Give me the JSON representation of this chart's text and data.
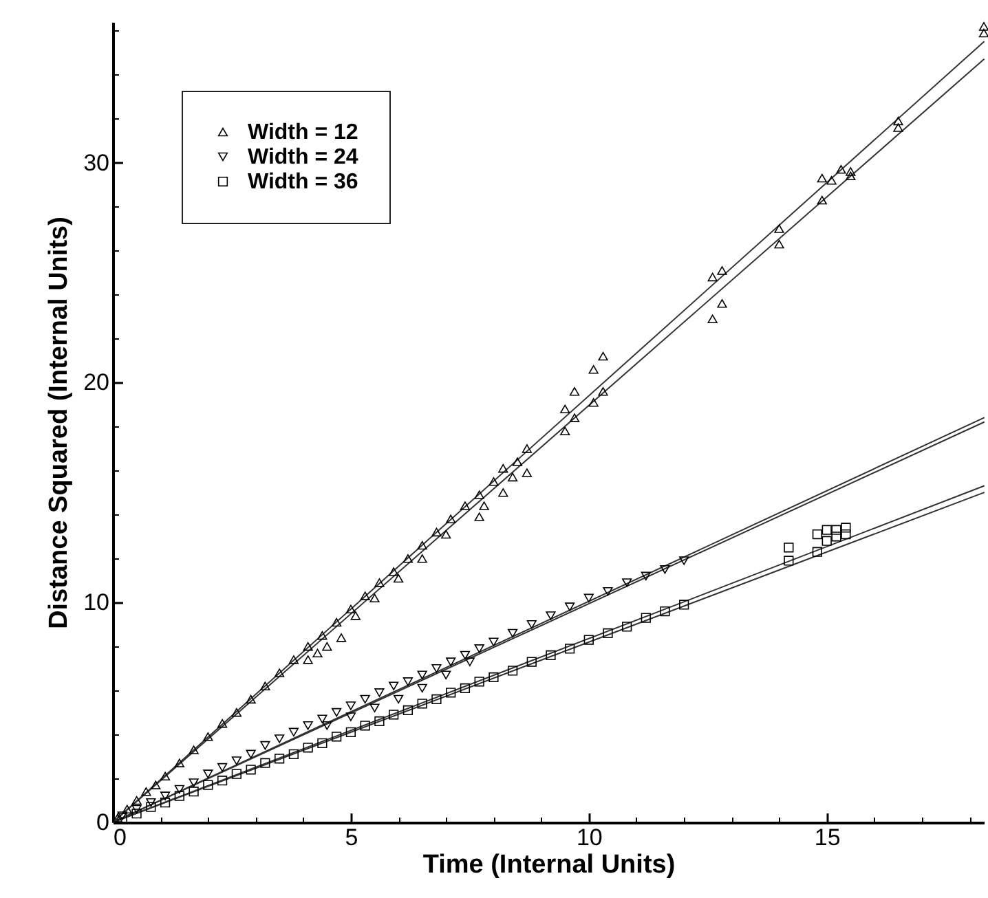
{
  "chart_data": {
    "type": "scatter",
    "xlabel": "Time (Internal Units)",
    "ylabel": "Distance Squared (Internal Units)",
    "xlim": [
      0,
      18.3
    ],
    "ylim": [
      0,
      36.4
    ],
    "xticks": [
      0,
      {
        "value": 1,
        "label": null
      },
      {
        "value": 2,
        "label": null
      },
      {
        "value": 3,
        "label": null
      },
      {
        "value": 4,
        "label": null
      },
      5,
      {
        "value": 6,
        "label": null
      },
      {
        "value": 7,
        "label": null
      },
      {
        "value": 8,
        "label": null
      },
      {
        "value": 9,
        "label": null
      },
      10,
      {
        "value": 11,
        "label": null
      },
      {
        "value": 12,
        "label": null
      },
      {
        "value": 13,
        "label": null
      },
      {
        "value": 14,
        "label": null
      },
      15,
      {
        "value": 16,
        "label": null
      },
      {
        "value": 17,
        "label": null
      },
      {
        "value": 18,
        "label": null
      }
    ],
    "yticks": [
      0,
      {
        "value": 2,
        "label": null
      },
      {
        "value": 4,
        "label": null
      },
      {
        "value": 6,
        "label": null
      },
      {
        "value": 8,
        "label": null
      },
      10,
      {
        "value": 12,
        "label": null
      },
      {
        "value": 14,
        "label": null
      },
      {
        "value": 16,
        "label": null
      },
      {
        "value": 18,
        "label": null
      },
      20,
      {
        "value": 22,
        "label": null
      },
      {
        "value": 24,
        "label": null
      },
      {
        "value": 26,
        "label": null
      },
      {
        "value": 28,
        "label": null
      },
      30,
      {
        "value": 32,
        "label": null
      },
      {
        "value": 34,
        "label": null
      },
      {
        "value": 36,
        "label": null
      }
    ],
    "grid": false,
    "legend": "top left",
    "series": [
      {
        "name": "Width = 12",
        "type": "scatter",
        "marker": "triangle",
        "color": "#000000",
        "x": [
          0.1,
          0.3,
          0.5,
          0.7,
          0.9,
          1.1,
          1.4,
          1.7,
          2.0,
          2.3,
          2.6,
          2.9,
          3.2,
          3.5,
          3.8,
          4.1,
          4.4,
          4.7,
          5.0,
          5.3,
          5.6,
          5.9,
          6.2,
          6.5,
          6.8,
          7.1,
          7.4,
          7.7,
          8.0,
          4.1,
          4.3,
          4.5,
          4.8,
          5.1,
          5.5,
          6.0,
          6.5,
          7.0,
          7.7,
          7.8,
          8.2,
          8.4,
          8.2,
          8.5,
          8.7,
          8.7,
          9.5,
          9.5,
          9.7,
          10.1,
          10.3,
          10.1,
          10.3,
          9.7,
          12.6,
          12.8,
          12.6,
          12.8,
          14.0,
          14.0,
          14.9,
          14.9,
          15.1,
          15.3,
          15.5,
          15.5,
          16.5,
          16.5,
          18.3,
          18.3
        ],
        "values": [
          0.2,
          0.6,
          1.0,
          1.4,
          1.7,
          2.1,
          2.7,
          3.3,
          3.9,
          4.5,
          5.0,
          5.6,
          6.2,
          6.8,
          7.4,
          8.0,
          8.5,
          9.1,
          9.7,
          10.3,
          10.9,
          11.4,
          12.0,
          12.6,
          13.2,
          13.8,
          14.4,
          14.9,
          15.5,
          7.4,
          7.7,
          8.0,
          8.4,
          9.4,
          10.2,
          11.1,
          12.0,
          13.1,
          13.9,
          14.4,
          15.0,
          15.7,
          16.1,
          16.4,
          15.9,
          17.0,
          17.8,
          18.8,
          19.6,
          20.6,
          21.2,
          19.1,
          19.6,
          18.4,
          22.9,
          23.6,
          24.8,
          25.1,
          26.3,
          27.0,
          28.3,
          29.3,
          29.2,
          29.7,
          29.6,
          29.4,
          31.9,
          31.6,
          36.2,
          35.9
        ]
      },
      {
        "name": "Width = 24",
        "type": "scatter",
        "marker": "triangle-down",
        "color": "#000000",
        "x": [
          0.2,
          0.5,
          0.8,
          1.1,
          1.4,
          1.7,
          2.0,
          2.3,
          2.6,
          2.9,
          3.2,
          3.5,
          3.8,
          4.1,
          4.4,
          4.7,
          5.0,
          5.3,
          5.6,
          5.9,
          6.2,
          6.5,
          6.8,
          7.1,
          7.4,
          7.7,
          8.0,
          8.4,
          8.8,
          9.2,
          9.6,
          10.0,
          10.4,
          10.8,
          11.2,
          11.6,
          12.0,
          4.5,
          5.0,
          5.5,
          6.0,
          6.5,
          7.0,
          7.5
        ],
        "values": [
          0.3,
          0.6,
          0.9,
          1.2,
          1.5,
          1.8,
          2.2,
          2.5,
          2.8,
          3.1,
          3.5,
          3.8,
          4.1,
          4.4,
          4.7,
          5.0,
          5.3,
          5.6,
          5.9,
          6.2,
          6.4,
          6.7,
          7.0,
          7.3,
          7.6,
          7.9,
          8.2,
          8.6,
          9.0,
          9.4,
          9.8,
          10.2,
          10.5,
          10.9,
          11.2,
          11.5,
          11.9,
          4.4,
          4.8,
          5.2,
          5.6,
          6.1,
          6.7,
          7.3
        ]
      },
      {
        "name": "Width = 36",
        "type": "scatter",
        "marker": "square",
        "color": "#000000",
        "x": [
          0.2,
          0.5,
          0.8,
          1.1,
          1.4,
          1.7,
          2.0,
          2.3,
          2.6,
          2.9,
          3.2,
          3.5,
          3.8,
          4.1,
          4.4,
          4.7,
          5.0,
          5.3,
          5.6,
          5.9,
          6.2,
          6.5,
          6.8,
          7.1,
          7.4,
          7.7,
          8.0,
          8.4,
          8.8,
          9.2,
          9.6,
          10.0,
          10.4,
          10.8,
          11.2,
          11.6,
          12.0,
          14.2,
          14.2,
          14.8,
          14.8,
          15.0,
          15.2,
          15.4,
          15.0,
          15.2,
          15.4
        ],
        "values": [
          0.2,
          0.4,
          0.7,
          0.9,
          1.2,
          1.4,
          1.7,
          1.9,
          2.2,
          2.4,
          2.7,
          2.9,
          3.1,
          3.4,
          3.6,
          3.9,
          4.1,
          4.4,
          4.6,
          4.9,
          5.1,
          5.4,
          5.6,
          5.9,
          6.1,
          6.4,
          6.6,
          6.9,
          7.3,
          7.6,
          7.9,
          8.3,
          8.6,
          8.9,
          9.3,
          9.6,
          9.9,
          12.5,
          11.9,
          13.1,
          12.3,
          13.3,
          13.3,
          13.4,
          12.8,
          13.0,
          13.1
        ]
      },
      {
        "type": "line",
        "marker": "none",
        "color": "#333333",
        "x": [
          0,
          18.3
        ],
        "values": [
          0,
          35.5
        ]
      },
      {
        "type": "line",
        "marker": "none",
        "color": "#333333",
        "x": [
          0,
          18.3
        ],
        "values": [
          0,
          34.7
        ]
      },
      {
        "type": "line",
        "marker": "none",
        "color": "#333333",
        "x": [
          0,
          18.3
        ],
        "values": [
          0,
          18.4
        ]
      },
      {
        "type": "line",
        "marker": "none",
        "color": "#333333",
        "x": [
          0,
          18.3
        ],
        "values": [
          0,
          18.2
        ]
      },
      {
        "type": "line",
        "marker": "none",
        "color": "#333333",
        "x": [
          0,
          18.3
        ],
        "values": [
          0,
          15.3
        ]
      },
      {
        "type": "line",
        "marker": "none",
        "color": "#333333",
        "x": [
          0,
          18.3
        ],
        "values": [
          0,
          15.0
        ]
      }
    ]
  }
}
